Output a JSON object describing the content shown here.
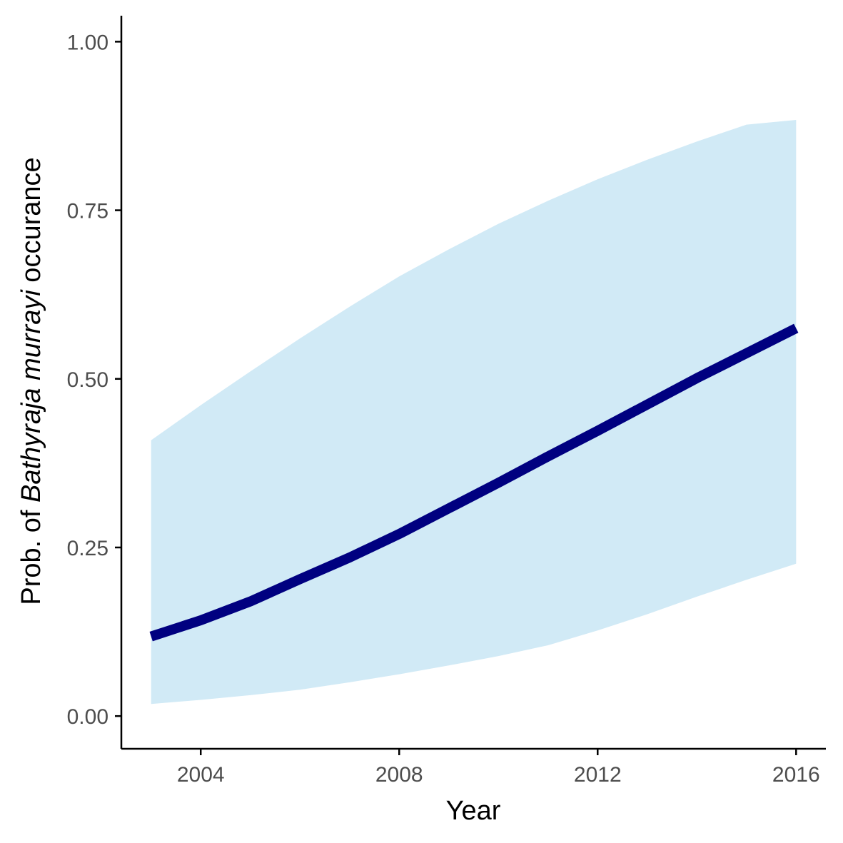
{
  "chart_data": {
    "type": "line",
    "title": "",
    "xlabel": "Year",
    "ylabel_parts": [
      "Prob. of ",
      "Bathyraja murrayi",
      " occurance"
    ],
    "xlim": [
      2002.4,
      2016.6
    ],
    "ylim": [
      -0.0485,
      1.0385
    ],
    "x_ticks": [
      2004,
      2008,
      2012,
      2016
    ],
    "y_ticks": [
      0.0,
      0.25,
      0.5,
      0.75,
      1.0
    ],
    "y_tick_labels": [
      "0.00",
      "0.25",
      "0.50",
      "0.75",
      "1.00"
    ],
    "x_tick_labels": [
      "2004",
      "2008",
      "2012",
      "2016"
    ],
    "grid": false,
    "legend": "none",
    "series": [
      {
        "x": [
          2003,
          2004,
          2005,
          2006,
          2007,
          2008,
          2009,
          2010,
          2011,
          2012,
          2013,
          2014,
          2015,
          2016
        ],
        "y": [
          0.118,
          0.142,
          0.17,
          0.203,
          0.235,
          0.27,
          0.308,
          0.346,
          0.385,
          0.423,
          0.462,
          0.501,
          0.538,
          0.575
        ],
        "lower": [
          0.018,
          0.024,
          0.031,
          0.039,
          0.05,
          0.062,
          0.075,
          0.089,
          0.105,
          0.127,
          0.151,
          0.177,
          0.202,
          0.226
        ],
        "upper": [
          0.409,
          0.461,
          0.511,
          0.56,
          0.607,
          0.652,
          0.692,
          0.73,
          0.764,
          0.796,
          0.825,
          0.852,
          0.877,
          0.884
        ],
        "line_color": "#000080",
        "ribbon_color": "#d1eaf6"
      }
    ]
  }
}
